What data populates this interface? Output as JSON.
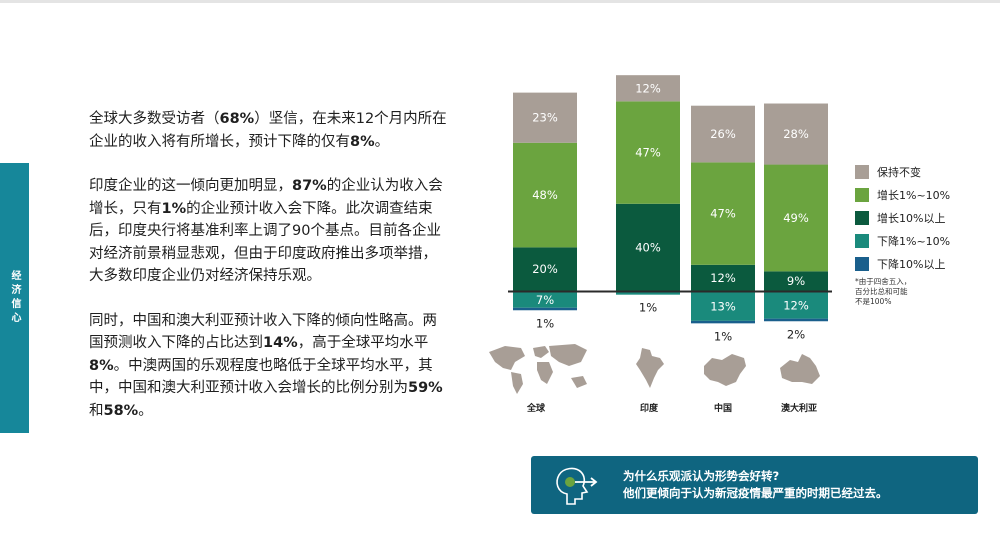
{
  "sidebar": {
    "label": "经济信心"
  },
  "paragraphs": [
    [
      {
        "t": "全球大多数受访者（",
        "b": false
      },
      {
        "t": "68%",
        "b": true
      },
      {
        "t": "）坚信，在未来12个月内所在企业的收入将有所增长，预计下降的仅有",
        "b": false
      },
      {
        "t": "8%",
        "b": true
      },
      {
        "t": "。",
        "b": false
      }
    ],
    [
      {
        "t": "印度企业的这一倾向更加明显，",
        "b": false
      },
      {
        "t": "87%",
        "b": true
      },
      {
        "t": "的企业认为收入会增长，只有",
        "b": false
      },
      {
        "t": "1%",
        "b": true
      },
      {
        "t": "的企业预计收入会下降。此次调查结束后，印度央行将基准利率上调了90个基点。目前各企业对经济前景稍显悲观，但由于印度政府推出多项举措，大多数印度企业仍对经济保持乐观。",
        "b": false
      }
    ],
    [
      {
        "t": "同时，中国和澳大利亚预计收入下降的倾向性略高。两国预测收入下降的占比达到",
        "b": false
      },
      {
        "t": "14%",
        "b": true
      },
      {
        "t": "，高于全球平均水平",
        "b": false
      },
      {
        "t": "8%",
        "b": true
      },
      {
        "t": "。中澳两国的乐观程度也略低于全球平均水平，其中，中国和澳大利亚预计收入会增长的比例分别为",
        "b": false
      },
      {
        "t": "59%",
        "b": true
      },
      {
        "t": "和",
        "b": false
      },
      {
        "t": "58%",
        "b": true
      },
      {
        "t": "。",
        "b": false
      }
    ]
  ],
  "chart_data": {
    "type": "bar",
    "stacked": true,
    "categories": [
      "全球",
      "印度",
      "中国",
      "澳大利亚"
    ],
    "series": [
      {
        "name": "保持不变",
        "color": "#a89e96",
        "values": [
          23,
          12,
          26,
          28
        ]
      },
      {
        "name": "增长1%~10%",
        "color": "#6ba43f",
        "values": [
          48,
          47,
          47,
          49
        ]
      },
      {
        "name": "增长10%以上",
        "color": "#0b5a3e",
        "values": [
          20,
          40,
          12,
          9
        ]
      },
      {
        "name": "下降1%~10%",
        "color": "#1a8a7c",
        "values": [
          7,
          1,
          13,
          12
        ]
      },
      {
        "name": "下降10%以上",
        "color": "#1a5f8c",
        "values": [
          1,
          0,
          1,
          2
        ]
      }
    ],
    "data_labels": [
      [
        "23%",
        "48%",
        "20%",
        "7%",
        "1%"
      ],
      [
        "12%",
        "47%",
        "40%",
        "1%",
        ""
      ],
      [
        "26%",
        "47%",
        "12%",
        "13%",
        "1%"
      ],
      [
        "28%",
        "49%",
        "9%",
        "12%",
        "2%"
      ]
    ],
    "legend_position": "right",
    "grid": false
  },
  "footnote": [
    "*由于四舍五入，",
    "百分比总和可能",
    "不是100%"
  ],
  "banner": {
    "line1": "为什么乐观派认为形势会好转?",
    "line2": "他们更倾向于认为新冠疫情最严重的时期已经过去。"
  },
  "map_color": "#a89e96"
}
